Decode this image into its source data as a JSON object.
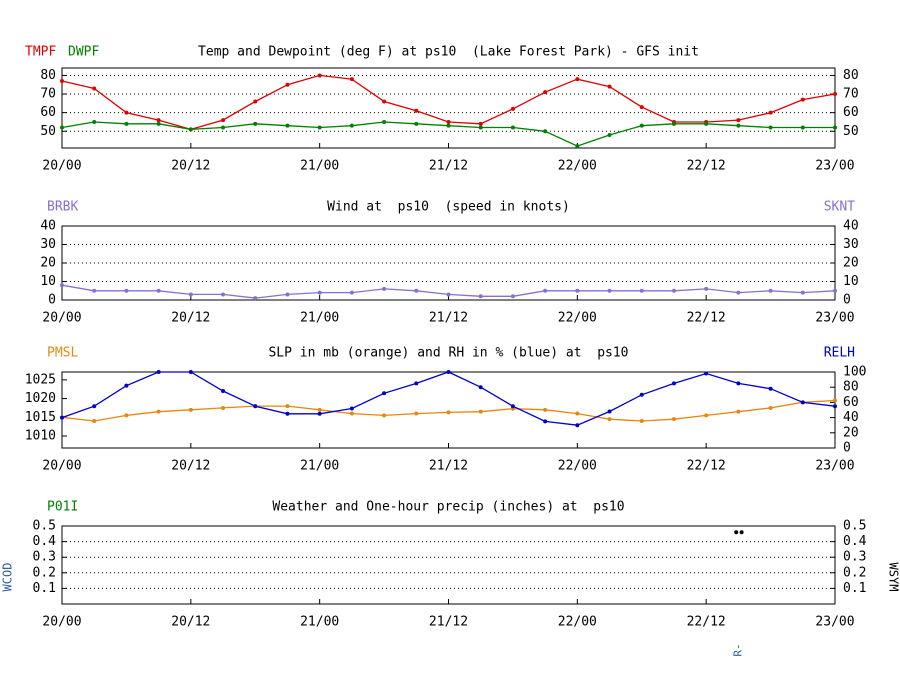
{
  "chart_data": [
    {
      "type": "line",
      "title": "Temp and Dewpoint (deg F) at ps10  (Lake Forest Park) - GFS init",
      "x": [
        0,
        3,
        6,
        9,
        12,
        15,
        18,
        21,
        24,
        27,
        30,
        33,
        36,
        39,
        42,
        45,
        48,
        51,
        54,
        57,
        60,
        63,
        66,
        69,
        72
      ],
      "xlim": [
        0,
        72
      ],
      "xticks": [
        {
          "value": 0,
          "label": "20/00"
        },
        {
          "value": 12,
          "label": "20/12"
        },
        {
          "value": 24,
          "label": "21/00"
        },
        {
          "value": 36,
          "label": "21/12"
        },
        {
          "value": 48,
          "label": "22/00"
        },
        {
          "value": 60,
          "label": "22/12"
        },
        {
          "value": 72,
          "label": "23/00"
        }
      ],
      "ylim": [
        41,
        84
      ],
      "yticks": [
        50,
        60,
        70,
        80
      ],
      "y2lim": [
        41,
        84
      ],
      "y2ticks": [
        50,
        60,
        70,
        80
      ],
      "grid": true,
      "series": [
        {
          "name": "TMPF",
          "color": "#e00000",
          "values": [
            77,
            73,
            60,
            56,
            51,
            56,
            66,
            75,
            80,
            78,
            66,
            61,
            55,
            54,
            62,
            71,
            78,
            74,
            63,
            55,
            55,
            56,
            60,
            67,
            70
          ]
        },
        {
          "name": "DWPF",
          "color": "#008000",
          "values": [
            52,
            55,
            54,
            54,
            51,
            52,
            54,
            53,
            52,
            53,
            55,
            54,
            53,
            52,
            52,
            50,
            42,
            48,
            53,
            54,
            54,
            53,
            52,
            52,
            52
          ]
        }
      ]
    },
    {
      "type": "line",
      "title": "Wind at  ps10  (speed in knots)",
      "left_label": "BRBK",
      "x": [
        0,
        3,
        6,
        9,
        12,
        15,
        18,
        21,
        24,
        27,
        30,
        33,
        36,
        39,
        42,
        45,
        48,
        51,
        54,
        57,
        60,
        63,
        66,
        69,
        72
      ],
      "xlim": [
        0,
        72
      ],
      "xticks": [
        {
          "value": 0,
          "label": "20/00"
        },
        {
          "value": 12,
          "label": "20/12"
        },
        {
          "value": 24,
          "label": "21/00"
        },
        {
          "value": 36,
          "label": "21/12"
        },
        {
          "value": 48,
          "label": "22/00"
        },
        {
          "value": 60,
          "label": "22/12"
        },
        {
          "value": 72,
          "label": "23/00"
        }
      ],
      "ylim": [
        0,
        40
      ],
      "yticks": [
        0,
        10,
        20,
        30,
        40
      ],
      "y2lim": [
        0,
        40
      ],
      "y2ticks": [
        0,
        10,
        20,
        30,
        40
      ],
      "grid": true,
      "series": [
        {
          "name": "SKNT",
          "color": "#8a6fd0",
          "axis": "y2",
          "values": [
            8,
            5,
            5,
            5,
            3,
            3,
            1,
            3,
            4,
            4,
            6,
            5,
            3,
            2,
            2,
            5,
            5,
            5,
            5,
            5,
            6,
            4,
            5,
            4,
            5
          ]
        }
      ]
    },
    {
      "type": "line",
      "title": "SLP in mb (orange) and RH in % (blue) at  ps10",
      "x": [
        0,
        3,
        6,
        9,
        12,
        15,
        18,
        21,
        24,
        27,
        30,
        33,
        36,
        39,
        42,
        45,
        48,
        51,
        54,
        57,
        60,
        63,
        66,
        69,
        72
      ],
      "xlim": [
        0,
        72
      ],
      "xticks": [
        {
          "value": 0,
          "label": "20/00"
        },
        {
          "value": 12,
          "label": "20/12"
        },
        {
          "value": 24,
          "label": "21/00"
        },
        {
          "value": 36,
          "label": "21/12"
        },
        {
          "value": 48,
          "label": "22/00"
        },
        {
          "value": 60,
          "label": "22/12"
        },
        {
          "value": 72,
          "label": "23/00"
        }
      ],
      "ylim": [
        1006.8,
        1027.1
      ],
      "yticks": [
        1010,
        1015,
        1020,
        1025
      ],
      "y2lim": [
        0,
        100
      ],
      "y2ticks": [
        0,
        20,
        40,
        60,
        80,
        100
      ],
      "grid": false,
      "series": [
        {
          "name": "PMSL",
          "color": "#e8870e",
          "values": [
            1015,
            1014,
            1015.5,
            1016.5,
            1017,
            1017.5,
            1018,
            1018,
            1017,
            1016,
            1015.5,
            1016,
            1016.3,
            1016.5,
            1017.3,
            1017,
            1016,
            1014.5,
            1014,
            1014.5,
            1015.5,
            1016.5,
            1017.5,
            1019,
            1019.5
          ]
        },
        {
          "name": "RELH",
          "color": "#0000cd",
          "axis": "y2",
          "values": [
            40,
            55,
            82,
            100,
            100,
            75,
            55,
            45,
            45,
            52,
            72,
            85,
            100,
            80,
            55,
            35,
            30,
            48,
            70,
            85,
            98,
            85,
            78,
            60,
            55
          ]
        }
      ]
    },
    {
      "type": "scatter",
      "title": "Weather and One-hour precip (inches) at  ps10",
      "left_label": "P01I",
      "left_axis_label": "WCOD",
      "right_axis_label": "WSYM",
      "annotation": {
        "text": "R-",
        "x": 63
      },
      "xlim": [
        0,
        72
      ],
      "xticks": [
        {
          "value": 0,
          "label": "20/00"
        },
        {
          "value": 12,
          "label": "20/12"
        },
        {
          "value": 24,
          "label": "21/00"
        },
        {
          "value": 36,
          "label": "21/12"
        },
        {
          "value": 48,
          "label": "22/00"
        },
        {
          "value": 60,
          "label": "22/12"
        },
        {
          "value": 72,
          "label": "23/00"
        }
      ],
      "ylim": [
        0,
        0.5
      ],
      "yticks": [
        0.1,
        0.2,
        0.3,
        0.4,
        0.5
      ],
      "y2lim": [
        0,
        0.5
      ],
      "y2ticks": [
        0.1,
        0.2,
        0.3,
        0.4,
        0.5
      ],
      "grid": true,
      "points": {
        "color": "#000000",
        "x": [
          62.8,
          63.3
        ],
        "values": [
          0.46,
          0.46
        ]
      }
    }
  ]
}
